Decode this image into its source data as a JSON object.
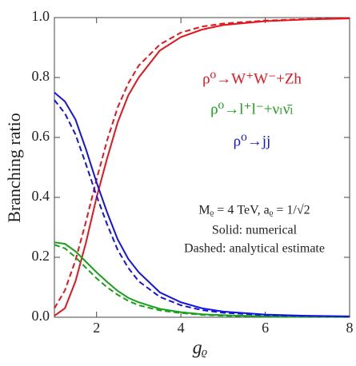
{
  "chart_data": {
    "type": "line",
    "x_label": "gᵨ",
    "y_label": "Branching ratio",
    "x": [
      1,
      1.25,
      1.5,
      1.75,
      2,
      2.25,
      2.5,
      2.75,
      3,
      3.5,
      4,
      4.5,
      5,
      6,
      7,
      8
    ],
    "series": [
      {
        "name": "ρ⁰→W⁺W⁻+Zh",
        "color": "#e8141c",
        "values": [
          0.005,
          0.03,
          0.12,
          0.25,
          0.4,
          0.53,
          0.65,
          0.74,
          0.8,
          0.89,
          0.935,
          0.96,
          0.975,
          0.988,
          0.994,
          0.997
        ],
        "dashed_values": [
          0.03,
          0.09,
          0.19,
          0.32,
          0.46,
          0.59,
          0.7,
          0.78,
          0.84,
          0.91,
          0.95,
          0.97,
          0.98,
          0.99,
          0.995,
          0.998
        ]
      },
      {
        "name": "ρ⁰→l⁺l⁻+νₗν̄ₗ",
        "color": "#1aa01a",
        "values": [
          0.25,
          0.245,
          0.22,
          0.185,
          0.15,
          0.118,
          0.088,
          0.065,
          0.05,
          0.028,
          0.017,
          0.01,
          0.007,
          0.003,
          0.002,
          0.001
        ],
        "dashed_values": [
          0.242,
          0.23,
          0.2,
          0.165,
          0.13,
          0.1,
          0.075,
          0.055,
          0.04,
          0.023,
          0.014,
          0.008,
          0.005,
          0.002,
          0.001,
          0.001
        ]
      },
      {
        "name": "ρ⁰→jj",
        "color": "#1414e0",
        "values": [
          0.75,
          0.72,
          0.66,
          0.56,
          0.45,
          0.35,
          0.26,
          0.195,
          0.15,
          0.083,
          0.05,
          0.03,
          0.019,
          0.009,
          0.005,
          0.003
        ],
        "dashed_values": [
          0.725,
          0.68,
          0.61,
          0.51,
          0.405,
          0.31,
          0.225,
          0.165,
          0.12,
          0.068,
          0.04,
          0.024,
          0.015,
          0.007,
          0.004,
          0.002
        ]
      }
    ],
    "annotations": [
      "Mᵨ = 4 TeV, aᵨ = 1/√2",
      "Solid: numerical",
      "Dashed: analytical estimate"
    ],
    "xlim": [
      1,
      8
    ],
    "xticks": [
      2,
      4,
      6,
      8
    ],
    "ylim": [
      0,
      1
    ],
    "yticks": [
      {
        "value": 0,
        "label": "0.0"
      },
      {
        "value": 0.2,
        "label": "0.2"
      },
      {
        "value": 0.4,
        "label": "0.4"
      },
      {
        "value": 0.6,
        "label": "0.6"
      },
      {
        "value": 0.8,
        "label": "0.8"
      },
      {
        "value": 1,
        "label": "1.0"
      }
    ],
    "grid": false
  }
}
